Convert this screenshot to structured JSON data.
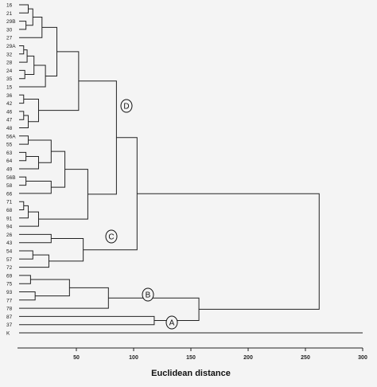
{
  "axis": {
    "title": "Euclidean distance",
    "ticks": [
      "50",
      "100",
      "150",
      "200",
      "250",
      "300"
    ],
    "tick_values": [
      50,
      100,
      150,
      200,
      250,
      300
    ],
    "range": [
      0,
      300
    ]
  },
  "leaves": [
    "16",
    "21",
    "29B",
    "30",
    "27",
    "29A",
    "32",
    "28",
    "24",
    "35",
    "15",
    "36",
    "42",
    "46",
    "47",
    "48",
    "56A",
    "55",
    "63",
    "64",
    "49",
    "56B",
    "58",
    "66",
    "71",
    "68",
    "91",
    "94",
    "26",
    "43",
    "54",
    "57",
    "72",
    "69",
    "75",
    "93",
    "77",
    "78",
    "87",
    "37",
    "K"
  ],
  "clusters": [
    {
      "letter": "D",
      "height": 62
    },
    {
      "letter": "C",
      "height": 45
    },
    {
      "letter": "B",
      "height": 36
    },
    {
      "letter": "A",
      "height": 137
    }
  ],
  "dendrogram": {
    "merges": [
      [
        0,
        1,
        8
      ],
      [
        2,
        3,
        6
      ],
      [
        [
          0,
          1
        ],
        [
          2,
          3
        ],
        12
      ],
      [
        [
          0,
          1,
          2,
          3
        ],
        4,
        20
      ],
      [
        5,
        6,
        4
      ],
      [
        [
          5,
          6
        ],
        7,
        7
      ],
      [
        8,
        9,
        5
      ],
      [
        [
          5,
          6,
          7
        ],
        [
          8,
          9
        ],
        13
      ],
      [
        [
          5,
          6,
          7,
          8,
          9
        ],
        10,
        23
      ],
      [
        11,
        12,
        4
      ],
      [
        13,
        14,
        4
      ],
      [
        [
          13,
          14
        ],
        15,
        8
      ],
      [
        [
          11,
          12
        ],
        [
          13,
          14,
          15
        ],
        17
      ],
      [
        16,
        17,
        8
      ],
      [
        18,
        19,
        6
      ],
      [
        [
          18,
          19
        ],
        20,
        17
      ],
      [
        [
          16,
          17
        ],
        [
          18,
          19,
          20
        ],
        28
      ],
      [
        21,
        22,
        6
      ],
      [
        [
          21,
          22
        ],
        23,
        28
      ],
      [
        24,
        25,
        4
      ],
      [
        [
          24,
          25
        ],
        26,
        8
      ],
      [
        [
          24,
          25,
          26
        ],
        27,
        17
      ],
      [
        28,
        29,
        28
      ],
      [
        30,
        31,
        12
      ],
      [
        [
          30,
          31
        ],
        32,
        26
      ],
      [
        33,
        34,
        10
      ],
      [
        35,
        36,
        14
      ]
    ]
  }
}
